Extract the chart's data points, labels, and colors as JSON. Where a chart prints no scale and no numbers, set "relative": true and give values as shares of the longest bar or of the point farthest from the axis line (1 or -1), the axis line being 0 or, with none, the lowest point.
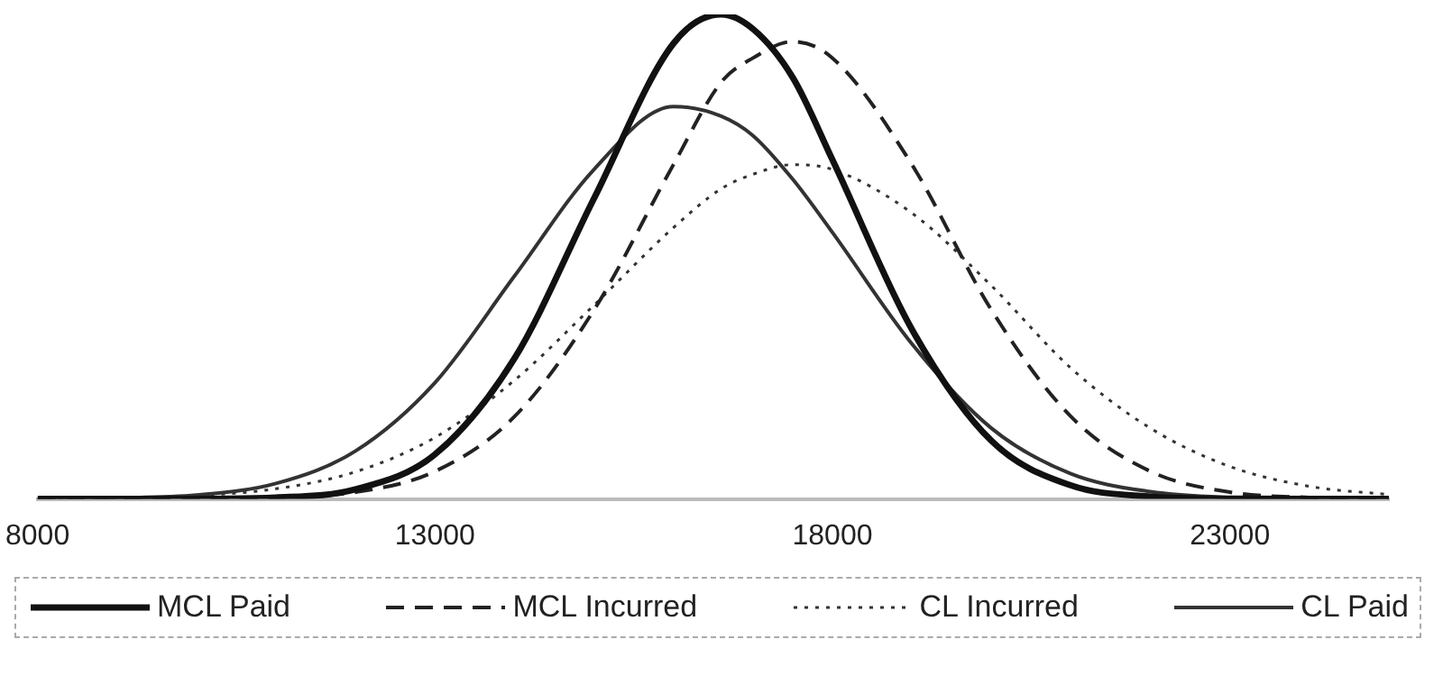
{
  "chart_data": {
    "type": "line",
    "relative": true,
    "xlim": [
      8000,
      25000
    ],
    "xticks": [
      8000,
      13000,
      18000,
      23000
    ],
    "grid": false,
    "legend": "bottom",
    "marker": "none",
    "x": [
      8000,
      9000,
      10000,
      11000,
      12000,
      13000,
      14000,
      15000,
      16000,
      16600,
      17000,
      17500,
      18000,
      19000,
      20000,
      21000,
      22000,
      23000,
      24000,
      25000
    ],
    "series": [
      {
        "name": "MCL Paid",
        "color": "#111111",
        "line_style": "solid",
        "values": [
          0,
          0,
          0.0003,
          0.003,
          0.02,
          0.092,
          0.29,
          0.62,
          0.94,
          1,
          0.97,
          0.87,
          0.7,
          0.35,
          0.12,
          0.028,
          0.005,
          0.0005,
          0,
          0
        ]
      },
      {
        "name": "MCL Incurred",
        "color": "#222222",
        "line_style": "dashed",
        "values": [
          0,
          0,
          0.0004,
          0.003,
          0.014,
          0.057,
          0.17,
          0.39,
          0.69,
          0.86,
          0.91,
          0.944,
          0.91,
          0.69,
          0.39,
          0.17,
          0.057,
          0.014,
          0.003,
          0.0004
        ]
      },
      {
        "name": "CL Incurred",
        "color": "#333333",
        "line_style": "dotted",
        "values": [
          0.0004,
          0.002,
          0.007,
          0.021,
          0.056,
          0.127,
          0.245,
          0.4,
          0.56,
          0.64,
          0.67,
          0.69,
          0.68,
          0.59,
          0.44,
          0.27,
          0.146,
          0.067,
          0.026,
          0.009
        ]
      },
      {
        "name": "CL Paid",
        "color": "#333333",
        "line_style": "solid",
        "values": [
          0.0003,
          0.002,
          0.008,
          0.032,
          0.099,
          0.24,
          0.46,
          0.68,
          0.81,
          0.79,
          0.75,
          0.66,
          0.55,
          0.32,
          0.146,
          0.052,
          0.015,
          0.003,
          0.0007,
          0
        ]
      }
    ]
  }
}
